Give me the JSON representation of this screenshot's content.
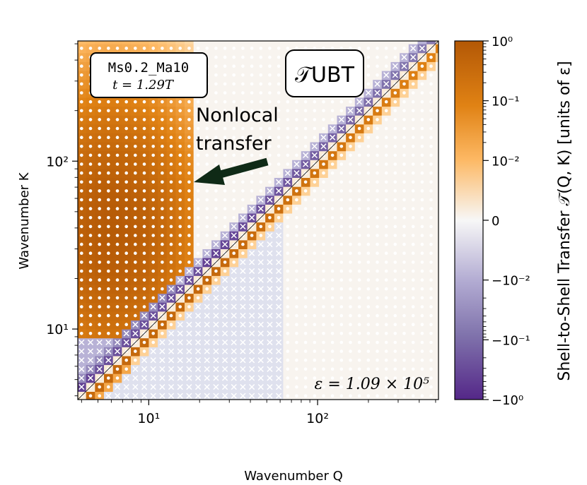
{
  "chart_data": {
    "type": "heatmap",
    "title": "𝒯UBT",
    "run_label": "Ms0.2_Ma10",
    "time_label": "t = 1.29T",
    "xlabel": "Wavenumber Q",
    "ylabel": "Wavenumber K",
    "xscale": "log",
    "yscale": "log",
    "xlim": [
      3.8,
      520
    ],
    "ylim": [
      3.8,
      520
    ],
    "x_ticks": [
      {
        "value": 10,
        "label": "10¹"
      },
      {
        "value": 100,
        "label": "10²"
      }
    ],
    "y_ticks": [
      {
        "value": 10,
        "label": "10¹"
      },
      {
        "value": 100,
        "label": "10²"
      }
    ],
    "diagonal": "Q = K",
    "annotation": {
      "text_line1": "Nonlocal",
      "text_line2": "transfer",
      "points_to": {
        "q": 17,
        "k": 75
      }
    },
    "epsilon_label": "ε = 1.09 × 10⁵",
    "colorbar": {
      "label": "Shell-to-Shell Transfer 𝒯(Q, K)  [units of ε]",
      "scale": "symlog",
      "range": [
        -1,
        1
      ],
      "ticks": [
        "10⁰",
        "10⁻¹",
        "10⁻²",
        "0",
        "−10⁻²",
        "−10⁻¹",
        "−10⁰"
      ],
      "positive_color": "#b35806",
      "negative_color": "#542788"
    },
    "marker_legend": {
      "positive": "dot",
      "negative": "cross"
    },
    "shells": {
      "q_min": 4,
      "growth": 1.13,
      "count": 43
    }
  }
}
